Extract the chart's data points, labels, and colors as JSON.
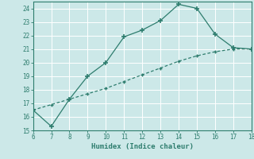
{
  "x_solid": [
    6,
    7,
    8,
    9,
    10,
    11,
    12,
    13,
    14,
    15,
    16,
    17,
    18
  ],
  "y_solid": [
    16.5,
    15.3,
    17.3,
    19.0,
    20.0,
    21.9,
    22.4,
    23.1,
    24.3,
    24.0,
    22.1,
    21.1,
    21.0
  ],
  "x_dashed": [
    6,
    7,
    8,
    9,
    10,
    11,
    12,
    13,
    14,
    15,
    16,
    17,
    18
  ],
  "y_dashed": [
    16.5,
    16.9,
    17.3,
    17.7,
    18.1,
    18.6,
    19.1,
    19.6,
    20.1,
    20.5,
    20.8,
    21.0,
    21.0
  ],
  "xlim": [
    6,
    18
  ],
  "ylim": [
    15,
    24.5
  ],
  "yticks": [
    15,
    16,
    17,
    18,
    19,
    20,
    21,
    22,
    23,
    24
  ],
  "xticks": [
    6,
    7,
    8,
    9,
    10,
    11,
    12,
    13,
    14,
    15,
    16,
    17,
    18
  ],
  "xlabel": "Humidex (Indice chaleur)",
  "line_color": "#2e7d6e",
  "bg_color": "#cce8e8",
  "grid_color": "#b8d8d8",
  "marker": "+"
}
